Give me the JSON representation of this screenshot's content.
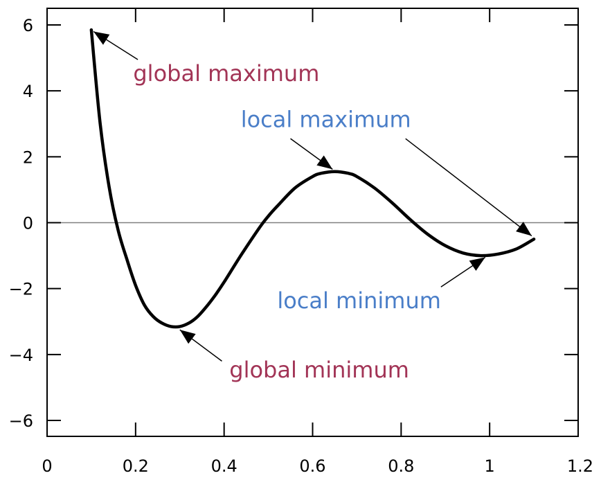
{
  "chart_data": {
    "type": "line",
    "title": "",
    "xlabel": "",
    "ylabel": "",
    "xlim": [
      0,
      1.2
    ],
    "ylim": [
      -6.5,
      6.5
    ],
    "grid": false,
    "legend": "none",
    "x_ticks": [
      0,
      0.2,
      0.4,
      0.6,
      0.8,
      1,
      1.2
    ],
    "x_tick_labels": [
      "0",
      "0.2",
      "0.4",
      "0.6",
      "0.8",
      "1",
      "1.2"
    ],
    "y_ticks": [
      6,
      4,
      2,
      0,
      -2,
      -4,
      -6
    ],
    "y_tick_labels": [
      "6",
      "4",
      "2",
      "0",
      "−2",
      "−4",
      "−6"
    ],
    "zero_line": true,
    "series": [
      {
        "color": "#000000",
        "points": [
          [
            0.1,
            5.85
          ],
          [
            0.12,
            3.0
          ],
          [
            0.14,
            1.1
          ],
          [
            0.16,
            -0.2
          ],
          [
            0.18,
            -1.1
          ],
          [
            0.2,
            -1.9
          ],
          [
            0.22,
            -2.5
          ],
          [
            0.24,
            -2.85
          ],
          [
            0.26,
            -3.05
          ],
          [
            0.28,
            -3.15
          ],
          [
            0.3,
            -3.15
          ],
          [
            0.32,
            -3.05
          ],
          [
            0.34,
            -2.85
          ],
          [
            0.36,
            -2.55
          ],
          [
            0.38,
            -2.2
          ],
          [
            0.4,
            -1.8
          ],
          [
            0.44,
            -0.95
          ],
          [
            0.48,
            -0.15
          ],
          [
            0.5,
            0.2
          ],
          [
            0.52,
            0.5
          ],
          [
            0.56,
            1.05
          ],
          [
            0.6,
            1.4
          ],
          [
            0.62,
            1.5
          ],
          [
            0.65,
            1.55
          ],
          [
            0.68,
            1.5
          ],
          [
            0.7,
            1.4
          ],
          [
            0.74,
            1.05
          ],
          [
            0.78,
            0.6
          ],
          [
            0.82,
            0.1
          ],
          [
            0.86,
            -0.35
          ],
          [
            0.9,
            -0.7
          ],
          [
            0.94,
            -0.92
          ],
          [
            0.98,
            -1.0
          ],
          [
            1.02,
            -0.95
          ],
          [
            1.06,
            -0.8
          ],
          [
            1.1,
            -0.5
          ]
        ]
      }
    ],
    "annotations": [
      {
        "text": "global maximum",
        "color": "#a23456",
        "text_xy": [
          0.405,
          4.3
        ],
        "arrow_from": [
          0.205,
          4.95
        ],
        "arrow_to": [
          0.105,
          5.8
        ]
      },
      {
        "text": "local maximum",
        "color": "#4a7ec8",
        "text_xy": [
          0.63,
          2.9
        ],
        "arrow_from": [
          0.55,
          2.55
        ],
        "arrow_to": [
          0.645,
          1.62
        ]
      },
      {
        "text": "local maximum",
        "color": "#4a7ec8",
        "text_xy": null,
        "arrow_from": [
          0.81,
          2.55
        ],
        "arrow_to": [
          1.095,
          -0.4
        ]
      },
      {
        "text": "local minimum",
        "color": "#4a7ec8",
        "text_xy": [
          0.705,
          -2.6
        ],
        "arrow_from": [
          0.89,
          -1.95
        ],
        "arrow_to": [
          0.99,
          -1.05
        ]
      },
      {
        "text": "global minimum",
        "color": "#a23456",
        "text_xy": [
          0.615,
          -4.7
        ],
        "arrow_from": [
          0.395,
          -4.2
        ],
        "arrow_to": [
          0.3,
          -3.25
        ]
      }
    ]
  }
}
